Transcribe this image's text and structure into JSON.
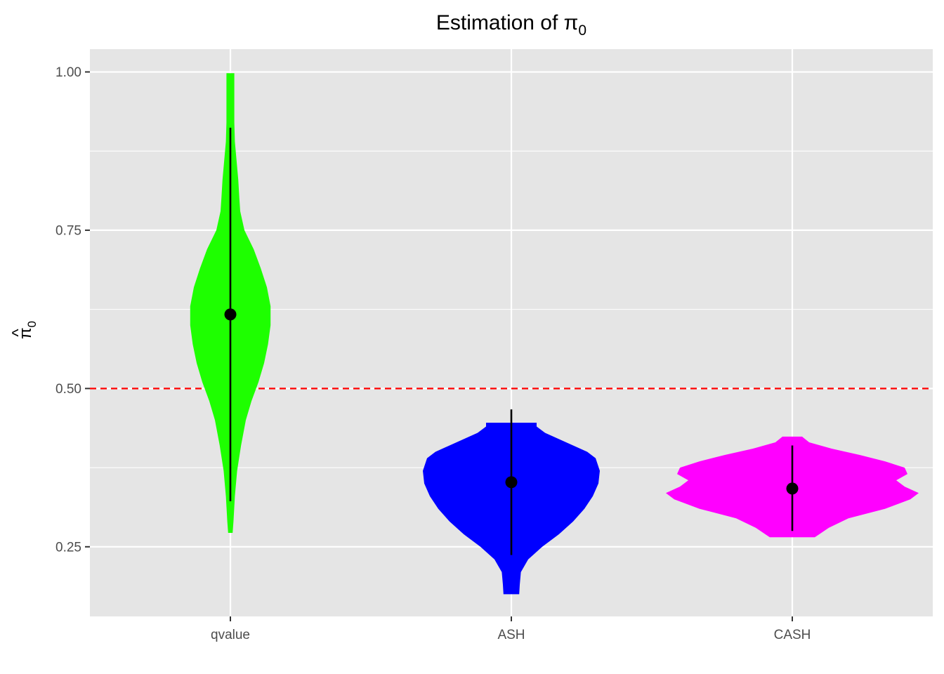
{
  "chart_data": {
    "type": "violin",
    "title": "Estimation of π",
    "title_subscript": "0",
    "ylabel_symbol": "π",
    "ylabel_hat": "^",
    "ylabel_subscript": "0",
    "xlabel": "",
    "categories": [
      "qvalue",
      "ASH",
      "CASH"
    ],
    "ylim": [
      0.14,
      1.036
    ],
    "y_ticks": [
      0.25,
      0.5,
      0.75,
      1.0
    ],
    "y_tick_labels": [
      "0.25",
      "0.50",
      "0.75",
      "1.00"
    ],
    "y_minor_ticks": [
      0.375,
      0.625,
      0.875
    ],
    "reference_line": {
      "y": 0.5,
      "color": "#FF0000",
      "style": "dashed"
    },
    "grid": true,
    "panel_background": "#E5E5E5",
    "grid_color": "#FFFFFF",
    "series": [
      {
        "category": "qvalue",
        "color": "#1EFF00",
        "density_max_halfwidth": 0.143,
        "violin": [
          [
            0.272,
            0.008
          ],
          [
            0.29,
            0.011
          ],
          [
            0.33,
            0.016
          ],
          [
            0.37,
            0.024
          ],
          [
            0.41,
            0.038
          ],
          [
            0.45,
            0.055
          ],
          [
            0.48,
            0.075
          ],
          [
            0.51,
            0.1
          ],
          [
            0.54,
            0.12
          ],
          [
            0.57,
            0.134
          ],
          [
            0.6,
            0.143
          ],
          [
            0.63,
            0.143
          ],
          [
            0.66,
            0.13
          ],
          [
            0.69,
            0.108
          ],
          [
            0.72,
            0.083
          ],
          [
            0.75,
            0.05
          ],
          [
            0.78,
            0.035
          ],
          [
            0.8,
            0.032
          ],
          [
            0.83,
            0.028
          ],
          [
            0.86,
            0.022
          ],
          [
            0.89,
            0.016
          ],
          [
            0.92,
            0.014
          ],
          [
            0.95,
            0.014
          ],
          [
            0.98,
            0.014
          ],
          [
            0.998,
            0.014
          ]
        ],
        "point": 0.617,
        "range_low": 0.322,
        "range_high": 0.912
      },
      {
        "category": "ASH",
        "color": "#0000FF",
        "density_max_halfwidth": 0.315,
        "violin": [
          [
            0.175,
            0.028
          ],
          [
            0.19,
            0.03
          ],
          [
            0.21,
            0.034
          ],
          [
            0.23,
            0.06
          ],
          [
            0.25,
            0.11
          ],
          [
            0.27,
            0.17
          ],
          [
            0.29,
            0.22
          ],
          [
            0.31,
            0.26
          ],
          [
            0.33,
            0.29
          ],
          [
            0.35,
            0.31
          ],
          [
            0.37,
            0.315
          ],
          [
            0.39,
            0.3
          ],
          [
            0.4,
            0.27
          ],
          [
            0.41,
            0.22
          ],
          [
            0.42,
            0.17
          ],
          [
            0.43,
            0.12
          ],
          [
            0.44,
            0.09
          ],
          [
            0.446,
            0.09
          ]
        ],
        "point": 0.352,
        "range_low": 0.237,
        "range_high": 0.467
      },
      {
        "category": "CASH",
        "color": "#FF00FF",
        "density_max_halfwidth": 0.45,
        "violin": [
          [
            0.265,
            0.08
          ],
          [
            0.28,
            0.13
          ],
          [
            0.295,
            0.2
          ],
          [
            0.31,
            0.33
          ],
          [
            0.325,
            0.42
          ],
          [
            0.335,
            0.45
          ],
          [
            0.345,
            0.4
          ],
          [
            0.355,
            0.37
          ],
          [
            0.365,
            0.41
          ],
          [
            0.375,
            0.4
          ],
          [
            0.385,
            0.33
          ],
          [
            0.395,
            0.24
          ],
          [
            0.405,
            0.14
          ],
          [
            0.415,
            0.06
          ],
          [
            0.424,
            0.035
          ]
        ],
        "point": 0.342,
        "range_low": 0.275,
        "range_high": 0.41
      }
    ]
  }
}
